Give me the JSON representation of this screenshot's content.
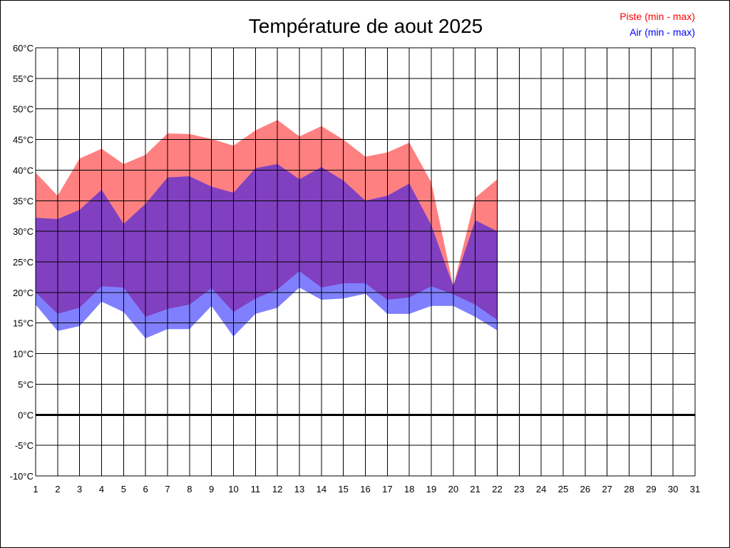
{
  "chart_data": {
    "type": "area",
    "title": "Température de aout 2025",
    "xlabel": "",
    "ylabel": "",
    "x": [
      1,
      2,
      3,
      4,
      5,
      6,
      7,
      8,
      9,
      10,
      11,
      12,
      13,
      14,
      15,
      16,
      17,
      18,
      19,
      20,
      21,
      22
    ],
    "x_ticks": [
      "1",
      "2",
      "3",
      "4",
      "5",
      "6",
      "7",
      "8",
      "9",
      "10",
      "11",
      "12",
      "13",
      "14",
      "15",
      "16",
      "17",
      "18",
      "19",
      "20",
      "21",
      "22",
      "23",
      "24",
      "25",
      "26",
      "27",
      "28",
      "29",
      "30",
      "31"
    ],
    "xlim": [
      1,
      31
    ],
    "y_ticks": [
      "60°C",
      "55°C",
      "50°C",
      "45°C",
      "40°C",
      "35°C",
      "30°C",
      "25°C",
      "20°C",
      "15°C",
      "10°C",
      "5°C",
      "0°C",
      "-5°C",
      "-10°C"
    ],
    "ylim": [
      -10,
      60
    ],
    "grid": true,
    "legend_position": "top-right",
    "series": [
      {
        "name": "Piste (min - max)",
        "color": "#ff8080",
        "min": [
          20,
          16.5,
          17.5,
          21,
          20.8,
          16,
          17.3,
          18,
          20.7,
          16.8,
          19,
          20.5,
          23.5,
          20.8,
          21.5,
          21.5,
          18.8,
          19.2,
          21,
          19.7,
          18,
          15.5
        ],
        "max": [
          39.6,
          35.8,
          41.9,
          43.5,
          41,
          42.5,
          46,
          45.9,
          45.1,
          44,
          46.5,
          48.2,
          45.5,
          47.2,
          45,
          42.2,
          42.9,
          44.5,
          38,
          21,
          35.5,
          38.5
        ]
      },
      {
        "name": "Air (min - max)",
        "color": "#8080ff",
        "min": [
          18,
          13.7,
          14.5,
          18.5,
          16.8,
          12.5,
          14,
          14,
          17.8,
          12.8,
          16.5,
          17.5,
          20.8,
          18.8,
          19,
          19.8,
          16.5,
          16.5,
          17.8,
          17.8,
          16,
          13.8
        ],
        "max": [
          32.2,
          32,
          33.5,
          36.8,
          31.2,
          34.5,
          38.8,
          39,
          37.3,
          36.3,
          40.3,
          41,
          38.5,
          40.5,
          38.3,
          35,
          35.8,
          37.8,
          31,
          21,
          31.8,
          30
        ]
      }
    ],
    "overlap_color": "#8040c0",
    "zero_line": 0
  }
}
